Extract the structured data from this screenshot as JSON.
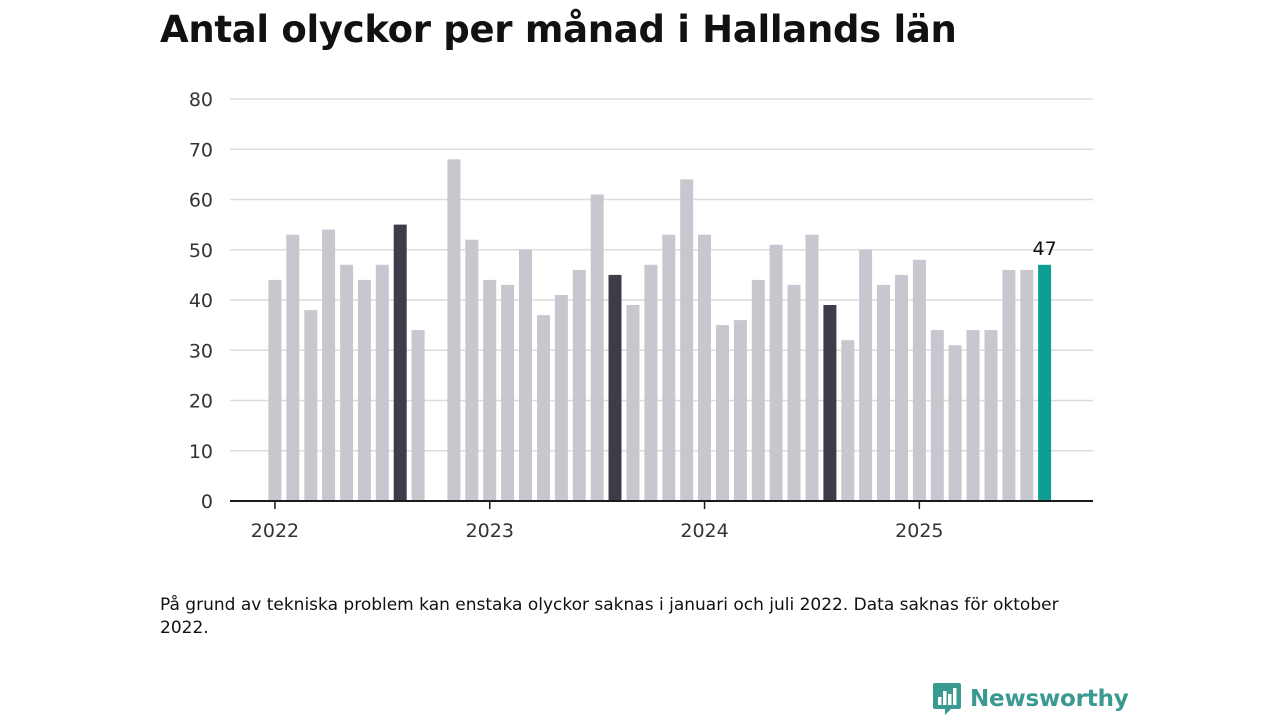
{
  "title": "Antal olyckor per månad i Hallands län",
  "footnote": "På grund av tekniska problem kan enstaka olyckor saknas i januari och juli 2022. Data saknas för oktober 2022.",
  "brand": {
    "name": "Newsworthy",
    "icon": "newsworthy-chart-bubble-icon"
  },
  "colors": {
    "bar": "#c8c7cf",
    "highlight": "#3d3c49",
    "latest": "#0f9e94",
    "grid": "#dcdcdc",
    "axis": "#1a1a1a",
    "brand": "#3a9a92"
  },
  "chart_data": {
    "type": "bar",
    "title": "Antal olyckor per månad i Hallands län",
    "xlabel": "",
    "ylabel": "",
    "ylim": [
      0,
      80
    ],
    "yticks": [
      0,
      10,
      20,
      30,
      40,
      50,
      60,
      70,
      80
    ],
    "xticks": [
      "2022",
      "2023",
      "2024",
      "2025"
    ],
    "grid": true,
    "months": [
      "2022-01",
      "2022-02",
      "2022-03",
      "2022-04",
      "2022-05",
      "2022-06",
      "2022-07",
      "2022-08",
      "2022-09",
      "2022-10",
      "2022-11",
      "2022-12",
      "2023-01",
      "2023-02",
      "2023-03",
      "2023-04",
      "2023-05",
      "2023-06",
      "2023-07",
      "2023-08",
      "2023-09",
      "2023-10",
      "2023-11",
      "2023-12",
      "2024-01",
      "2024-02",
      "2024-03",
      "2024-04",
      "2024-05",
      "2024-06",
      "2024-07",
      "2024-08",
      "2024-09",
      "2024-10",
      "2024-11",
      "2024-12",
      "2025-01",
      "2025-02",
      "2025-03",
      "2025-04",
      "2025-05",
      "2025-06",
      "2025-07",
      "2025-08"
    ],
    "values": [
      44,
      53,
      38,
      54,
      47,
      44,
      47,
      55,
      34,
      null,
      68,
      52,
      44,
      43,
      50,
      37,
      41,
      46,
      61,
      45,
      39,
      47,
      53,
      64,
      53,
      35,
      36,
      44,
      51,
      43,
      53,
      39,
      32,
      50,
      43,
      45,
      48,
      34,
      31,
      34,
      34,
      46,
      46,
      47
    ],
    "highlighted_months": [
      "2022-08",
      "2023-08",
      "2024-08"
    ],
    "latest_month": "2025-08",
    "annotations": [
      {
        "month": "2025-08",
        "text": "47"
      }
    ]
  }
}
